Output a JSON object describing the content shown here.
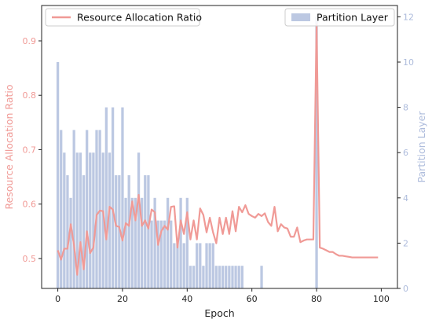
{
  "chart_data": {
    "type": "bar+line",
    "x_label": "Epoch",
    "y_left_label": "Resource Allocation Ratio",
    "y_right_label": "Partition Layer",
    "x_range": [
      -5,
      105
    ],
    "x_ticks": [
      0,
      20,
      40,
      60,
      80,
      100
    ],
    "y_left_range": [
      0.445,
      0.965
    ],
    "y_left_ticks": [
      0.5,
      0.6,
      0.7,
      0.8,
      0.9
    ],
    "y_right_range": [
      0,
      12.5
    ],
    "y_right_ticks": [
      0,
      2,
      4,
      6,
      8,
      10,
      12
    ],
    "legend_left": {
      "label": "Resource Allocation Ratio",
      "position": "upper-left"
    },
    "legend_right": {
      "label": "Partition Layer",
      "position": "upper-right"
    },
    "colors": {
      "line": "#f09a96",
      "bar": "#bcc8e2",
      "left_axis": "#f09a96",
      "right_axis": "#aebcdc"
    },
    "bars": {
      "name": "Partition Layer",
      "x": [
        0,
        1,
        2,
        3,
        4,
        5,
        6,
        7,
        8,
        9,
        10,
        11,
        12,
        13,
        14,
        15,
        16,
        17,
        18,
        19,
        20,
        21,
        22,
        23,
        24,
        25,
        26,
        27,
        28,
        29,
        30,
        31,
        32,
        33,
        34,
        35,
        36,
        37,
        38,
        39,
        40,
        41,
        42,
        43,
        44,
        45,
        46,
        47,
        48,
        49,
        50,
        51,
        52,
        53,
        54,
        55,
        56,
        57,
        63,
        80
      ],
      "values": [
        10,
        7,
        6,
        5,
        4,
        7,
        6,
        6,
        5,
        7,
        6,
        6,
        7,
        7,
        6,
        8,
        6,
        8,
        5,
        5,
        8,
        4,
        5,
        4,
        4,
        6,
        4,
        5,
        5,
        3,
        4,
        3,
        3,
        3,
        4,
        3,
        2,
        2,
        4,
        2,
        4,
        1,
        1,
        2,
        2,
        1,
        2,
        2,
        2,
        1,
        1,
        1,
        1,
        1,
        1,
        1,
        1,
        1,
        1,
        12
      ]
    },
    "line": {
      "name": "Resource Allocation Ratio",
      "x": [
        0,
        1,
        2,
        3,
        4,
        5,
        6,
        7,
        8,
        9,
        10,
        11,
        12,
        13,
        14,
        15,
        16,
        17,
        18,
        19,
        20,
        21,
        22,
        23,
        24,
        25,
        26,
        27,
        28,
        29,
        30,
        31,
        32,
        33,
        34,
        35,
        36,
        37,
        38,
        39,
        40,
        41,
        42,
        43,
        44,
        45,
        46,
        47,
        48,
        49,
        50,
        51,
        52,
        53,
        54,
        55,
        56,
        57,
        58,
        59,
        60,
        61,
        62,
        63,
        64,
        65,
        66,
        67,
        68,
        69,
        70,
        71,
        72,
        73,
        74,
        75,
        76,
        77,
        78,
        79,
        80,
        81,
        82,
        83,
        84,
        85,
        86,
        87,
        88,
        89,
        90,
        91,
        92,
        93,
        94,
        95,
        96,
        97,
        98,
        99
      ],
      "values": [
        0.515,
        0.498,
        0.518,
        0.518,
        0.563,
        0.525,
        0.47,
        0.53,
        0.48,
        0.55,
        0.51,
        0.52,
        0.58,
        0.588,
        0.587,
        0.535,
        0.595,
        0.59,
        0.56,
        0.558,
        0.533,
        0.565,
        0.56,
        0.605,
        0.57,
        0.617,
        0.56,
        0.57,
        0.555,
        0.59,
        0.585,
        0.525,
        0.55,
        0.56,
        0.553,
        0.595,
        0.596,
        0.52,
        0.57,
        0.545,
        0.585,
        0.535,
        0.57,
        0.535,
        0.592,
        0.58,
        0.548,
        0.575,
        0.548,
        0.528,
        0.575,
        0.545,
        0.575,
        0.545,
        0.587,
        0.55,
        0.595,
        0.585,
        0.598,
        0.582,
        0.578,
        0.575,
        0.582,
        0.578,
        0.583,
        0.567,
        0.56,
        0.595,
        0.55,
        0.563,
        0.557,
        0.555,
        0.54,
        0.54,
        0.557,
        0.53,
        0.533,
        0.535,
        0.535,
        0.535,
        0.93,
        0.52,
        0.518,
        0.515,
        0.512,
        0.512,
        0.508,
        0.505,
        0.505,
        0.504,
        0.503,
        0.502,
        0.502,
        0.502,
        0.502,
        0.502,
        0.502,
        0.502,
        0.502,
        0.502
      ]
    }
  }
}
